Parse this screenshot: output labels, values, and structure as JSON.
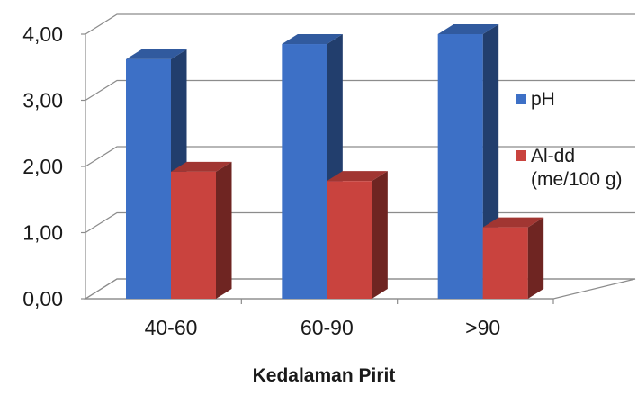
{
  "chart_data": {
    "type": "bar",
    "categories": [
      "40-60",
      "60-90",
      ">90"
    ],
    "series": [
      {
        "name": "pH",
        "values": [
          3.62,
          3.85,
          4.0
        ],
        "color": "#3d70c6"
      },
      {
        "name": "Al-dd (me/100 g)",
        "name_lines": [
          "Al-dd",
          "(me/100 g)"
        ],
        "values": [
          1.92,
          1.78,
          1.08
        ],
        "color": "#c9433e"
      }
    ],
    "xlabel": "Kedalaman Pirit",
    "ylabel": "",
    "ylim": [
      0,
      4
    ],
    "yticks": [
      "0,00",
      "1,00",
      "2,00",
      "3,00",
      "4,00"
    ],
    "grid": true,
    "legend": "right",
    "three_d": true
  }
}
